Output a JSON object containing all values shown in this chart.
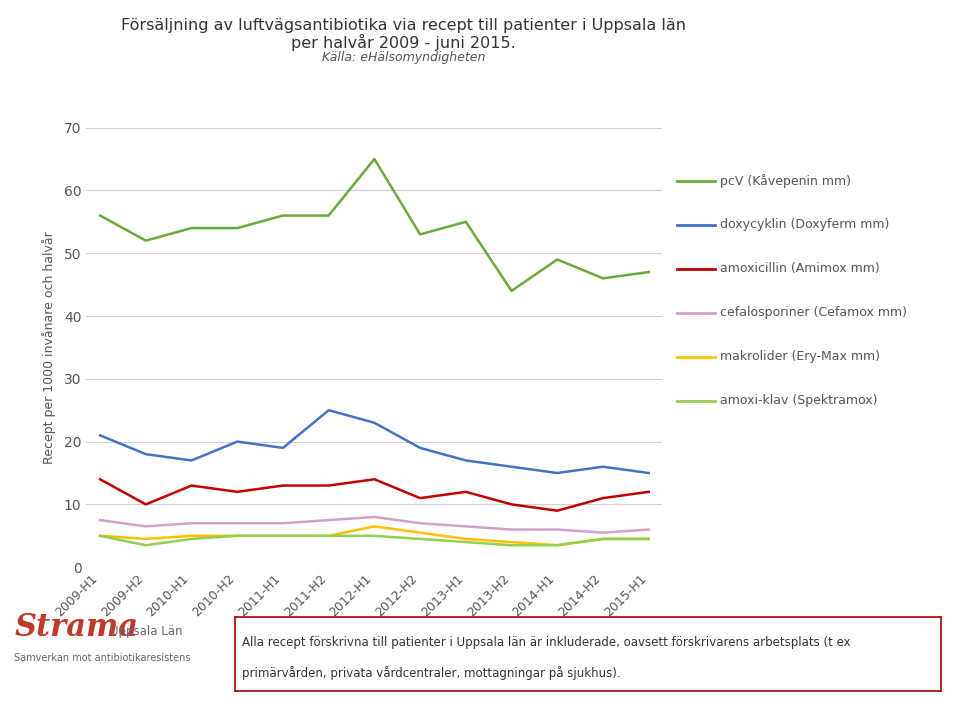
{
  "title_line1": "Försäljning av luftvägsantibiotika via recept till patienter i Uppsala län",
  "title_line2": "per halvår 2009 - juni 2015.",
  "subtitle": "Källa: eHälsomyndigheten",
  "ylabel": "Recept per 1000 invånare och halvår",
  "xlabels": [
    "2009-H1",
    "2009-H2",
    "2010-H1",
    "2010-H2",
    "2011-H1",
    "2011-H2",
    "2012-H1",
    "2012-H2",
    "2013-H1",
    "2013-H2",
    "2014-H1",
    "2014-H2",
    "2015-H1"
  ],
  "series": [
    {
      "name": "pcV (Kåvepenin mm)",
      "color": "#6aaa3a",
      "values": [
        56,
        52,
        54,
        54,
        56,
        56,
        65,
        53,
        55,
        44,
        49,
        46,
        47
      ]
    },
    {
      "name": "doxycyklin (Doxyferm mm)",
      "color": "#4472c4",
      "values": [
        21,
        18,
        17,
        20,
        19,
        25,
        23,
        19,
        17,
        16,
        15,
        16,
        15
      ]
    },
    {
      "name": "amoxicillin (Amimox mm)",
      "color": "#c00000",
      "values": [
        14,
        10,
        13,
        12,
        13,
        13,
        14,
        11,
        12,
        10,
        9,
        11,
        12
      ]
    },
    {
      "name": "cefalosporiner (Cefamox mm)",
      "color": "#d4a0c8",
      "values": [
        7.5,
        6.5,
        7,
        7,
        7,
        7.5,
        8,
        7,
        6.5,
        6,
        6,
        5.5,
        6
      ]
    },
    {
      "name": "makrolider (Ery-Max mm)",
      "color": "#ffc000",
      "values": [
        5,
        4.5,
        5,
        5,
        5,
        5,
        6.5,
        5.5,
        4.5,
        4,
        3.5,
        4.5,
        4.5
      ]
    },
    {
      "name": "amoxi-klav (Spektramox)",
      "color": "#92d050",
      "values": [
        5,
        3.5,
        4.5,
        5,
        5,
        5,
        5,
        4.5,
        4,
        3.5,
        3.5,
        4.5,
        4.5
      ]
    }
  ],
  "ylim": [
    0,
    70
  ],
  "yticks": [
    0,
    10,
    20,
    30,
    40,
    50,
    60,
    70
  ],
  "footer_text1": "Alla recept förskrivna till patienter i Uppsala län är inkluderade, oavsett förskrivarens arbetsplats (t ex",
  "footer_text2": "primärvården, privata vårdcentraler, mottagningar på sjukhus).",
  "background_color": "#ffffff",
  "grid_color": "#d0d0d0",
  "text_color": "#555555",
  "title_color": "#333333"
}
